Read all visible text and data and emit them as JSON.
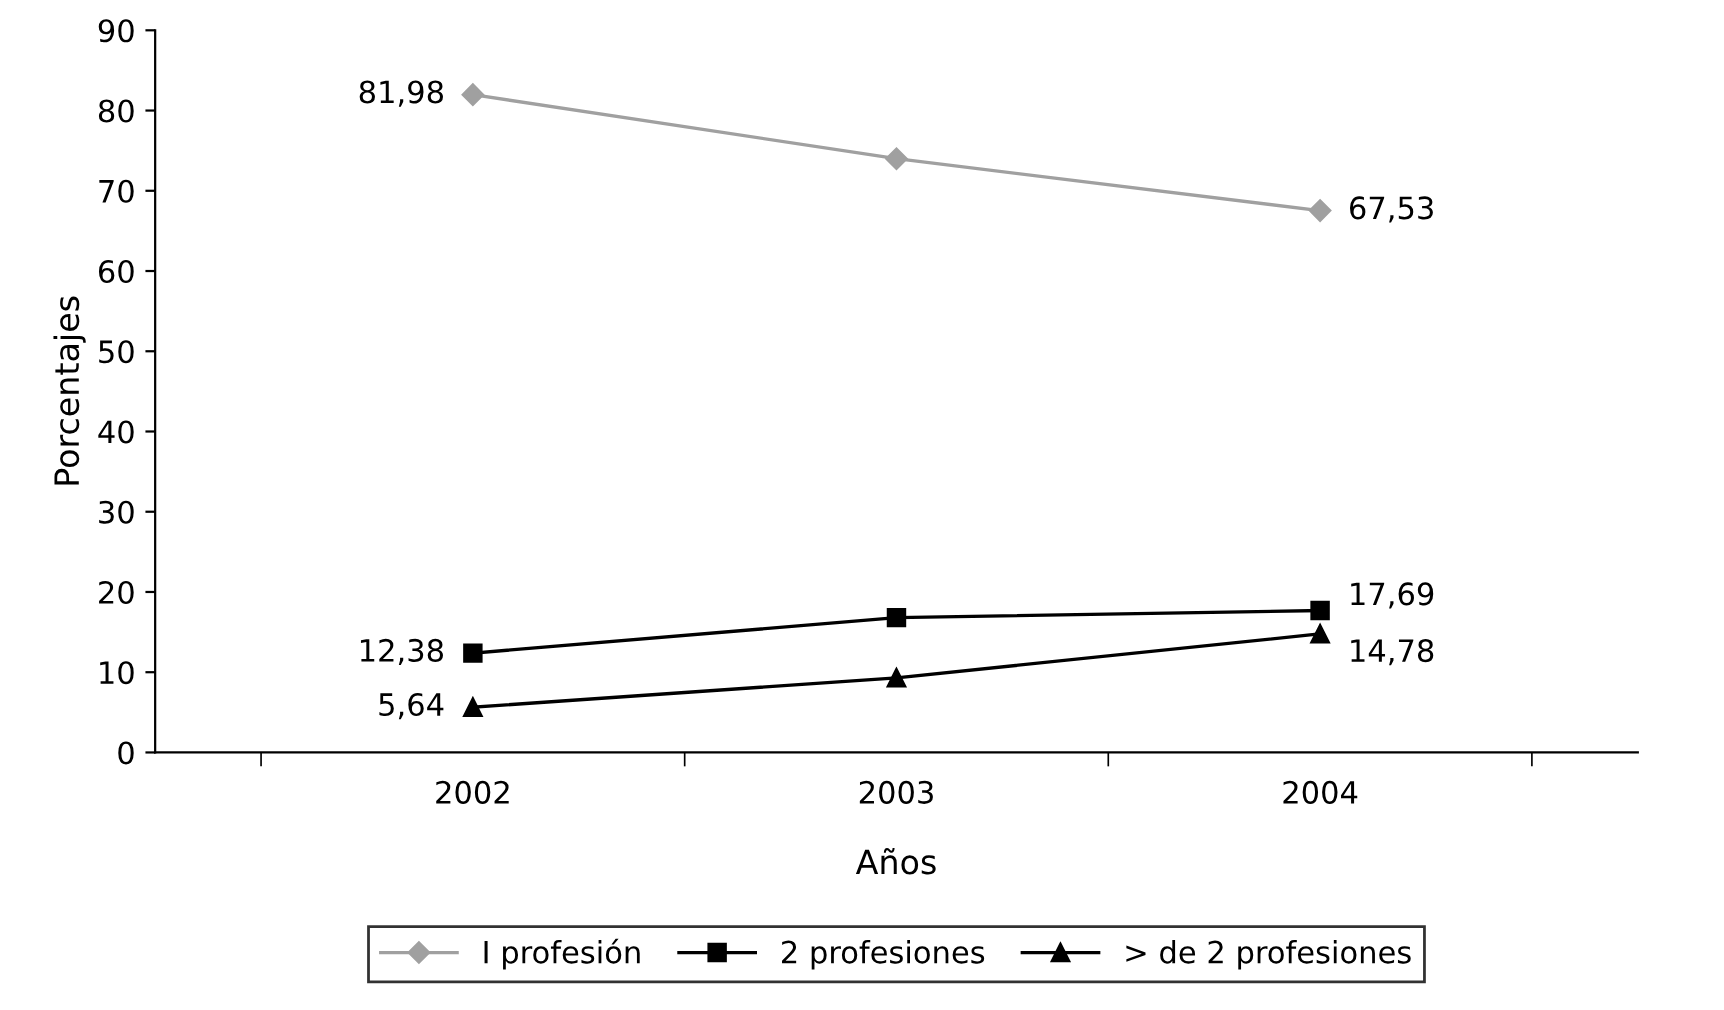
{
  "chart_data": {
    "type": "line",
    "xlabel": "Años",
    "ylabel": "Porcentajes",
    "categories": [
      "2002",
      "2003",
      "2004"
    ],
    "ylim": [
      0,
      90
    ],
    "yticks": [
      0,
      10,
      20,
      30,
      40,
      50,
      60,
      70,
      80,
      90
    ],
    "grid": false,
    "legend": "bottom",
    "series": [
      {
        "name": "I profesión",
        "color": "#a0a0a0",
        "marker": "diamond",
        "values": [
          81.98,
          74.0,
          67.53
        ],
        "value_labels": [
          "81,98",
          null,
          "67,53"
        ]
      },
      {
        "name": "2 profesiones",
        "color": "#000000",
        "marker": "square",
        "values": [
          12.38,
          16.8,
          17.69
        ],
        "value_labels": [
          "12,38",
          null,
          "17,69"
        ]
      },
      {
        "name": "> de 2 profesiones",
        "color": "#000000",
        "marker": "triangle",
        "values": [
          5.64,
          9.3,
          14.78
        ],
        "value_labels": [
          "5,64",
          null,
          "14,78"
        ]
      }
    ]
  }
}
